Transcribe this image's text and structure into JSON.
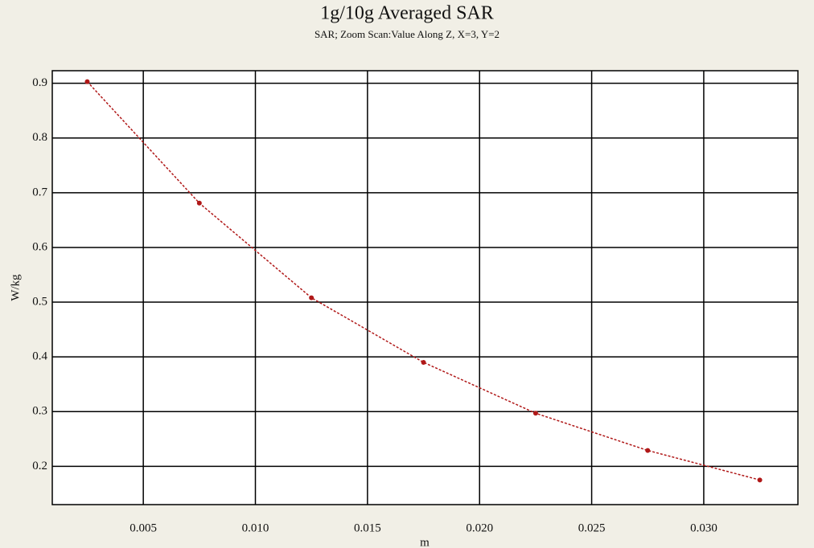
{
  "chart_data": {
    "type": "line",
    "title": "1g/10g Averaged SAR",
    "subtitle": "SAR; Zoom Scan:Value Along Z, X=3, Y=2",
    "xlabel": "m",
    "ylabel": "W/kg",
    "x": [
      0.0025,
      0.0075,
      0.0125,
      0.0175,
      0.0225,
      0.0275,
      0.0325
    ],
    "series": [
      {
        "name": "SAR",
        "color": "#b01818",
        "values": [
          0.903,
          0.681,
          0.508,
          0.39,
          0.297,
          0.229,
          0.175
        ]
      }
    ],
    "xlim": [
      0.00094,
      0.0342
    ],
    "xticks": [
      0.005,
      {
        "value": 0.01,
        "label": "0.010"
      },
      0.015,
      {
        "value": 0.02,
        "label": "0.020"
      },
      0.025,
      {
        "value": 0.03,
        "label": "0.030"
      }
    ],
    "ylim": [
      0.13,
      0.923
    ],
    "yticks": [
      0.2,
      0.3,
      0.4,
      0.5,
      0.6,
      0.7,
      0.8,
      0.9
    ],
    "grid": true
  }
}
